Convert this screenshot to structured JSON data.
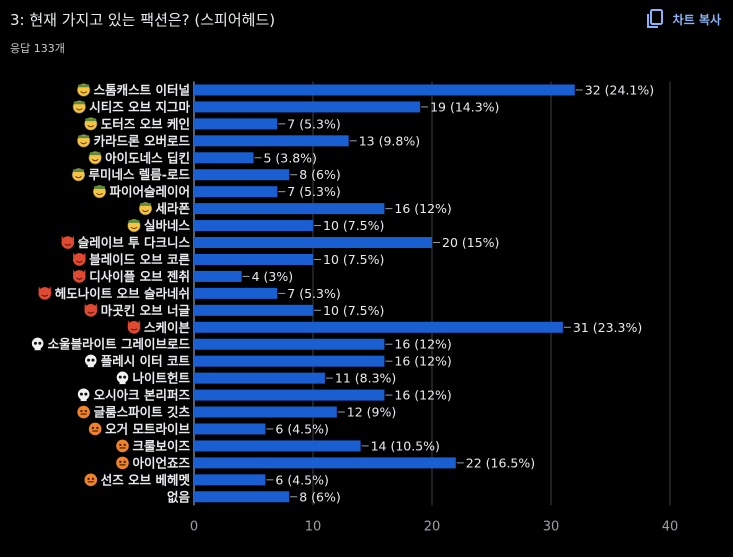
{
  "header": {
    "title": "3: 현재 가지고 있는 팩션은? (스피어헤드)",
    "responses": "응답 133개",
    "copy_label": "차트 복사"
  },
  "colors": {
    "bar": "#1a5fd1",
    "grid": "#3c4043",
    "axis": "#9aa0a6",
    "text": "#e8eaed"
  },
  "chart_data": {
    "type": "bar",
    "orientation": "horizontal",
    "title": "3: 현재 가지고 있는 팩션은? (스피어헤드)",
    "xlim": [
      0,
      40
    ],
    "xticks": [
      0,
      10,
      20,
      30,
      40
    ],
    "categories": [
      {
        "label": "스톰캐스트 이터널",
        "icon": "smile",
        "value": 32,
        "pct": "24.1%"
      },
      {
        "label": "시티즈 오브 지그마",
        "icon": "smile",
        "value": 19,
        "pct": "14.3%"
      },
      {
        "label": "도터즈 오브 케인",
        "icon": "smile",
        "value": 7,
        "pct": "5.3%"
      },
      {
        "label": "카라드론 오버로드",
        "icon": "smile",
        "value": 13,
        "pct": "9.8%"
      },
      {
        "label": "아이도네스 딥킨",
        "icon": "smile",
        "value": 5,
        "pct": "3.8%"
      },
      {
        "label": "루미네스 렐름-로드",
        "icon": "smile",
        "value": 8,
        "pct": "6%"
      },
      {
        "label": "파이어슬레이어",
        "icon": "smile",
        "value": 7,
        "pct": "5.3%"
      },
      {
        "label": "세라폰",
        "icon": "smile",
        "value": 16,
        "pct": "12%"
      },
      {
        "label": "실바네스",
        "icon": "smile",
        "value": 10,
        "pct": "7.5%"
      },
      {
        "label": "슬레이브 투 다크니스",
        "icon": "devil",
        "value": 20,
        "pct": "15%"
      },
      {
        "label": "블레이드 오브 코른",
        "icon": "devil",
        "value": 10,
        "pct": "7.5%"
      },
      {
        "label": "디사이플 오브 젠취",
        "icon": "devil",
        "value": 4,
        "pct": "3%"
      },
      {
        "label": "헤도나이트 오브 슬라네쉬",
        "icon": "devil",
        "value": 7,
        "pct": "5.3%"
      },
      {
        "label": "마곳킨 오브 너글",
        "icon": "devil",
        "value": 10,
        "pct": "7.5%"
      },
      {
        "label": "스케이븐",
        "icon": "devil",
        "value": 31,
        "pct": "23.3%"
      },
      {
        "label": "소울블라이트 그레이브로드",
        "icon": "skull",
        "value": 16,
        "pct": "12%"
      },
      {
        "label": "플레시 이터 코트",
        "icon": "skull",
        "value": 16,
        "pct": "12%"
      },
      {
        "label": "나이트헌트",
        "icon": "skull",
        "value": 11,
        "pct": "8.3%"
      },
      {
        "label": "오시아크 본리퍼즈",
        "icon": "skull",
        "value": 16,
        "pct": "12%"
      },
      {
        "label": "글룸스파이트 깃츠",
        "icon": "ogre",
        "value": 12,
        "pct": "9%"
      },
      {
        "label": "오거 모트라이브",
        "icon": "ogre",
        "value": 6,
        "pct": "4.5%"
      },
      {
        "label": "크룰보이즈",
        "icon": "ogre",
        "value": 14,
        "pct": "10.5%"
      },
      {
        "label": "아이언죠즈",
        "icon": "ogre",
        "value": 22,
        "pct": "16.5%"
      },
      {
        "label": "선즈 오브 베헤멧",
        "icon": "ogre",
        "value": 6,
        "pct": "4.5%"
      },
      {
        "label": "없음",
        "icon": "",
        "value": 8,
        "pct": "6%"
      }
    ]
  }
}
